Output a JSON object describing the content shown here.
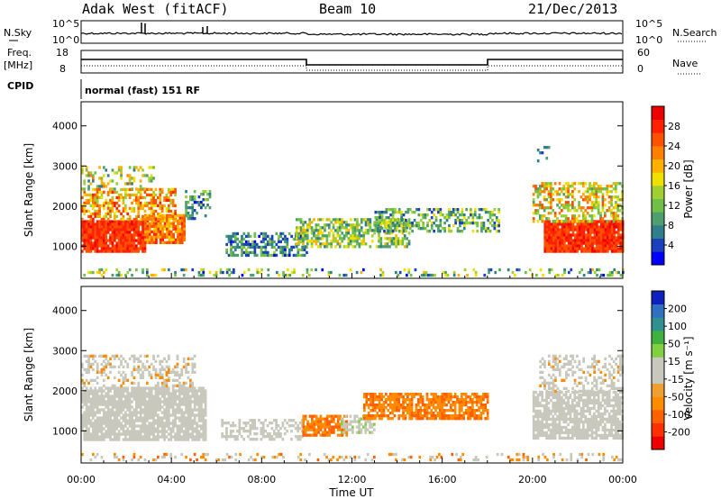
{
  "header": {
    "station": "Adak West (fitACF)",
    "beam": "Beam 10",
    "date": "21/Dec/2013"
  },
  "strip": {
    "nsky_label": "N.Sky",
    "nsearch_label": "N.Search",
    "nsky_ticks": [
      "10^5",
      "10^0"
    ],
    "nsearch_ticks": [
      "10^5",
      "10^0"
    ],
    "freq_label_top": "Freq.",
    "freq_label_unit": "[MHz]",
    "freq_ticks": [
      "18",
      "8"
    ],
    "nave_label": "Nave",
    "nave_ticks": [
      "60",
      "0"
    ],
    "cpid_label": "CPID",
    "cpid_text": "normal (fast) 151 RF"
  },
  "colors": {
    "power": [
      "#0000ff",
      "#1b3fbd",
      "#2f7f8a",
      "#4f9f6e",
      "#6fbf48",
      "#a0cf30",
      "#f0e000",
      "#ffb000",
      "#ff8000",
      "#ff5000",
      "#ff2000",
      "#ee0000"
    ],
    "velocity": [
      "#ee0000",
      "#ff3000",
      "#ff6000",
      "#ff8c00",
      "#f0a030",
      "#c8c8bc",
      "#c8c8bc",
      "#80d040",
      "#40b040",
      "#309090",
      "#3070c0",
      "#1020c0"
    ]
  },
  "chart_data": [
    {
      "type": "heatmap",
      "name": "power-panel",
      "ylabel": "Slant Range [km]",
      "xlabel": "",
      "y_ticks": [
        1000,
        2000,
        3000,
        4000
      ],
      "ylim": [
        200,
        4600
      ],
      "colorbar_label": "Power [dB]",
      "colorbar_ticks": [
        4,
        8,
        12,
        16,
        20,
        24,
        28
      ],
      "colorbar_range": [
        0,
        32
      ],
      "blobs": [
        {
          "x": [
            0.0,
            2.8
          ],
          "y": [
            850,
            1650
          ],
          "v": [
            24,
            30
          ],
          "d": 0.95
        },
        {
          "x": [
            2.8,
            4.6
          ],
          "y": [
            1100,
            1800
          ],
          "v": [
            18,
            28
          ],
          "d": 0.9
        },
        {
          "x": [
            0.0,
            4.2
          ],
          "y": [
            1650,
            2450
          ],
          "v": [
            14,
            28
          ],
          "d": 0.55
        },
        {
          "x": [
            0.0,
            3.2
          ],
          "y": [
            2450,
            3000
          ],
          "v": [
            6,
            22
          ],
          "d": 0.3
        },
        {
          "x": [
            4.6,
            5.7
          ],
          "y": [
            1700,
            2400
          ],
          "v": [
            2,
            14
          ],
          "d": 0.5
        },
        {
          "x": [
            6.4,
            10.0
          ],
          "y": [
            800,
            1350
          ],
          "v": [
            2,
            14
          ],
          "d": 0.55
        },
        {
          "x": [
            9.5,
            14.5
          ],
          "y": [
            1000,
            1700
          ],
          "v": [
            6,
            20
          ],
          "d": 0.6
        },
        {
          "x": [
            13.0,
            18.5
          ],
          "y": [
            1350,
            1950
          ],
          "v": [
            4,
            18
          ],
          "d": 0.5
        },
        {
          "x": [
            20.5,
            24.0
          ],
          "y": [
            850,
            1650
          ],
          "v": [
            24,
            30
          ],
          "d": 0.95
        },
        {
          "x": [
            20.0,
            24.0
          ],
          "y": [
            1650,
            2600
          ],
          "v": [
            10,
            26
          ],
          "d": 0.5
        },
        {
          "x": [
            20.2,
            20.8
          ],
          "y": [
            3150,
            3500
          ],
          "v": [
            4,
            14
          ],
          "d": 0.25
        },
        {
          "x": [
            0.0,
            24.0
          ],
          "y": [
            250,
            450
          ],
          "v": [
            2,
            20
          ],
          "d": 0.25
        }
      ]
    },
    {
      "type": "heatmap",
      "name": "velocity-panel",
      "ylabel": "Slant Range [km]",
      "xlabel": "Time UT",
      "x_ticks": [
        "00:00",
        "04:00",
        "08:00",
        "12:00",
        "16:00",
        "20:00",
        "00:00"
      ],
      "y_ticks": [
        1000,
        2000,
        3000,
        4000
      ],
      "ylim": [
        200,
        4600
      ],
      "colorbar_label": "Velocity [m s⁻¹]",
      "colorbar_ticks": [
        -200,
        -100,
        -50,
        -15,
        15,
        50,
        100,
        200
      ],
      "blobs": [
        {
          "x": [
            0.0,
            5.5
          ],
          "y": [
            800,
            2100
          ],
          "v": [
            -10,
            10
          ],
          "d": 0.85
        },
        {
          "x": [
            0.0,
            5.0
          ],
          "y": [
            2100,
            2900
          ],
          "v": [
            -25,
            20
          ],
          "d": 0.35
        },
        {
          "x": [
            6.2,
            9.8
          ],
          "y": [
            800,
            1300
          ],
          "v": [
            -10,
            10
          ],
          "d": 0.45
        },
        {
          "x": [
            9.8,
            11.8
          ],
          "y": [
            900,
            1400
          ],
          "v": [
            -70,
            -20
          ],
          "d": 0.75
        },
        {
          "x": [
            11.5,
            13.0
          ],
          "y": [
            950,
            1400
          ],
          "v": [
            20,
            60
          ],
          "d": 0.6
        },
        {
          "x": [
            12.5,
            18.0
          ],
          "y": [
            1300,
            1950
          ],
          "v": [
            -70,
            -20
          ],
          "d": 0.75
        },
        {
          "x": [
            20.0,
            24.0
          ],
          "y": [
            800,
            2000
          ],
          "v": [
            -10,
            10
          ],
          "d": 0.8
        },
        {
          "x": [
            20.3,
            24.0
          ],
          "y": [
            2000,
            2900
          ],
          "v": [
            -20,
            30
          ],
          "d": 0.4
        },
        {
          "x": [
            0.0,
            24.0
          ],
          "y": [
            250,
            450
          ],
          "v": [
            -60,
            40
          ],
          "d": 0.22
        }
      ]
    }
  ]
}
